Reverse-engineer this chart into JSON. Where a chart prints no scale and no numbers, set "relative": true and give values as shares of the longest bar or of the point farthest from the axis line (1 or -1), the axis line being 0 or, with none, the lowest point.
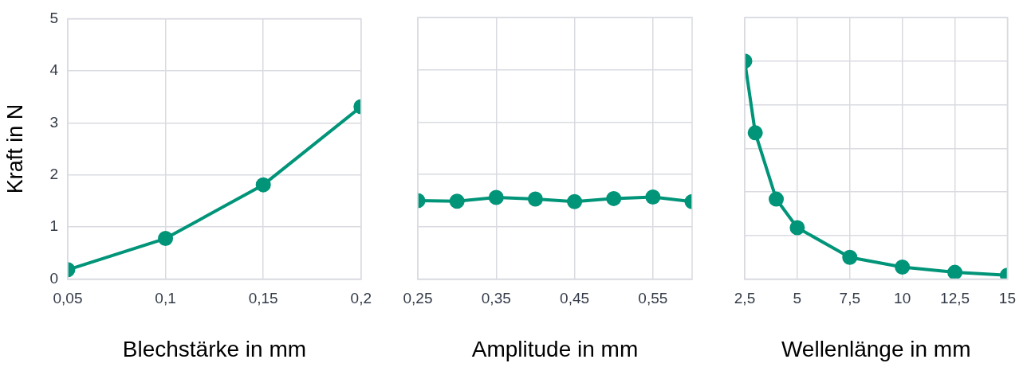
{
  "chart_data": [
    {
      "type": "line",
      "ylabel": "Kraft in N",
      "xlabel": "Blechstärke in mm",
      "x": [
        0.05,
        0.1,
        0.15,
        0.2
      ],
      "series": [
        {
          "color": "#009479",
          "values": [
            0.18,
            0.78,
            1.81,
            3.31
          ]
        }
      ],
      "xlim": [
        0.05,
        0.2
      ],
      "xticks": [
        {
          "value": 0.05,
          "label": "0,05"
        },
        {
          "value": 0.1,
          "label": "0,1"
        },
        {
          "value": 0.15,
          "label": "0,15"
        },
        {
          "value": 0.2,
          "label": "0,2"
        }
      ],
      "ylim": [
        0,
        5
      ],
      "yticks": [
        0,
        1,
        2,
        3,
        4,
        5
      ],
      "grid": true,
      "legend": false,
      "marker": "circle",
      "line_style": "solid"
    },
    {
      "type": "line",
      "xlabel": "Amplitude in mm",
      "x": [
        0.25,
        0.3,
        0.35,
        0.4,
        0.45,
        0.5,
        0.55,
        0.6
      ],
      "series": [
        {
          "color": "#009479",
          "values": [
            1.5,
            1.49,
            1.56,
            1.53,
            1.48,
            1.54,
            1.57,
            1.48
          ]
        }
      ],
      "xlim": [
        0.25,
        0.6
      ],
      "xticks": [
        {
          "value": 0.25,
          "label": "0,25"
        },
        {
          "value": 0.35,
          "label": "0,35"
        },
        {
          "value": 0.45,
          "label": "0,45"
        },
        {
          "value": 0.55,
          "label": "0,55"
        }
      ],
      "ylim": [
        0,
        5
      ],
      "yticks": [
        0,
        1,
        2,
        3,
        4,
        5
      ],
      "tick_labels": "x",
      "grid": true,
      "legend": false,
      "marker": "circle",
      "line_style": "solid"
    },
    {
      "type": "line",
      "xlabel": "Wellenlänge in mm",
      "x": [
        2.5,
        3,
        4,
        5,
        7.5,
        10,
        12.5,
        15
      ],
      "series": [
        {
          "color": "#009479",
          "values": [
            1,
            0.671,
            0.367,
            0.236,
            0.1,
            0.055,
            0.031,
            0.018
          ]
        }
      ],
      "xlim": [
        2.5,
        15
      ],
      "xticks": [
        {
          "value": 2.5,
          "label": "2,5"
        },
        5,
        {
          "value": 7.5,
          "label": "7,5"
        },
        10,
        {
          "value": 12.5,
          "label": "12,5"
        },
        15
      ],
      "relative": true,
      "grid": true,
      "legend": false,
      "marker": "circle",
      "line_style": "solid"
    }
  ]
}
